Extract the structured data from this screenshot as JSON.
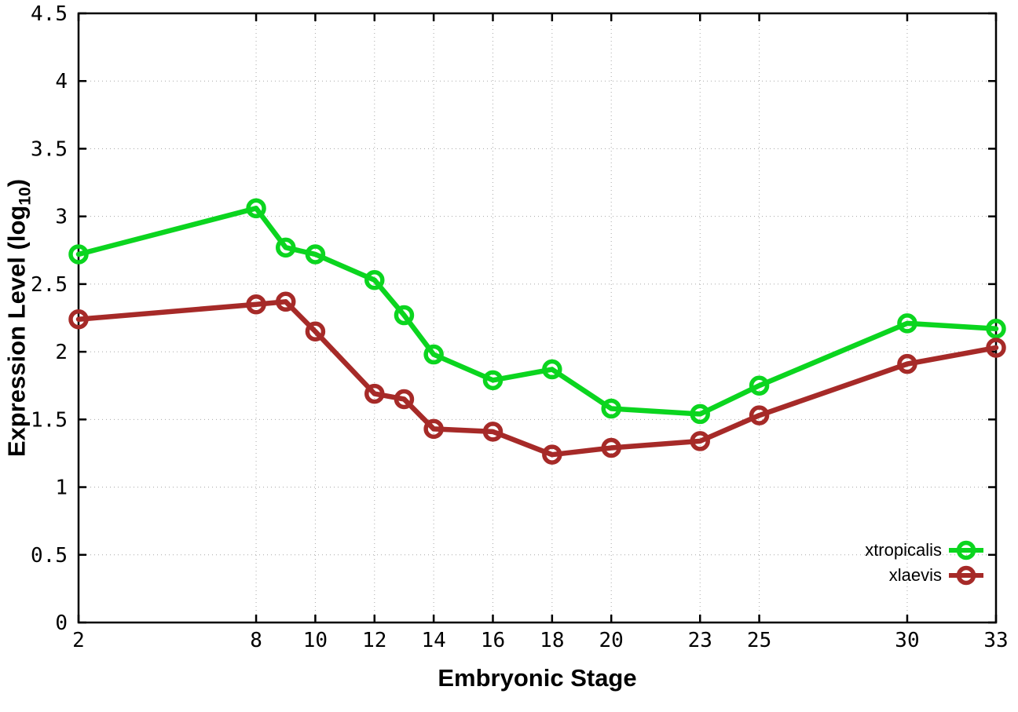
{
  "chart_data": {
    "type": "line",
    "title": "",
    "xlabel": "Embryonic Stage",
    "ylabel": {
      "pre": "Expression Level (log",
      "sub": "10",
      "post": ")"
    },
    "xlim": [
      2,
      33
    ],
    "ylim": [
      0,
      4.5
    ],
    "x_ticks": [
      2,
      8,
      10,
      12,
      14,
      16,
      18,
      20,
      23,
      25,
      30,
      33
    ],
    "y_ticks": [
      0,
      0.5,
      1,
      1.5,
      2,
      2.5,
      3,
      3.5,
      4,
      4.5
    ],
    "grid": true,
    "legend_position": "bottom-right",
    "x": [
      2,
      8,
      9,
      10,
      12,
      13,
      14,
      16,
      18,
      20,
      23,
      25,
      30,
      33
    ],
    "series": [
      {
        "name": "xtropicalis",
        "color": "#0bd51f",
        "values": [
          2.72,
          3.06,
          2.77,
          2.72,
          2.53,
          2.27,
          1.98,
          1.79,
          1.87,
          1.58,
          1.54,
          1.75,
          2.21,
          2.17
        ]
      },
      {
        "name": "xlaevis",
        "color": "#a62a28",
        "values": [
          2.24,
          2.35,
          2.37,
          2.15,
          1.69,
          1.65,
          1.43,
          1.41,
          1.24,
          1.29,
          1.34,
          1.53,
          1.91,
          2.03
        ]
      }
    ],
    "axis_color": "#000000",
    "grid_color": "#a8a8a8",
    "background_color": "#ffffff"
  }
}
